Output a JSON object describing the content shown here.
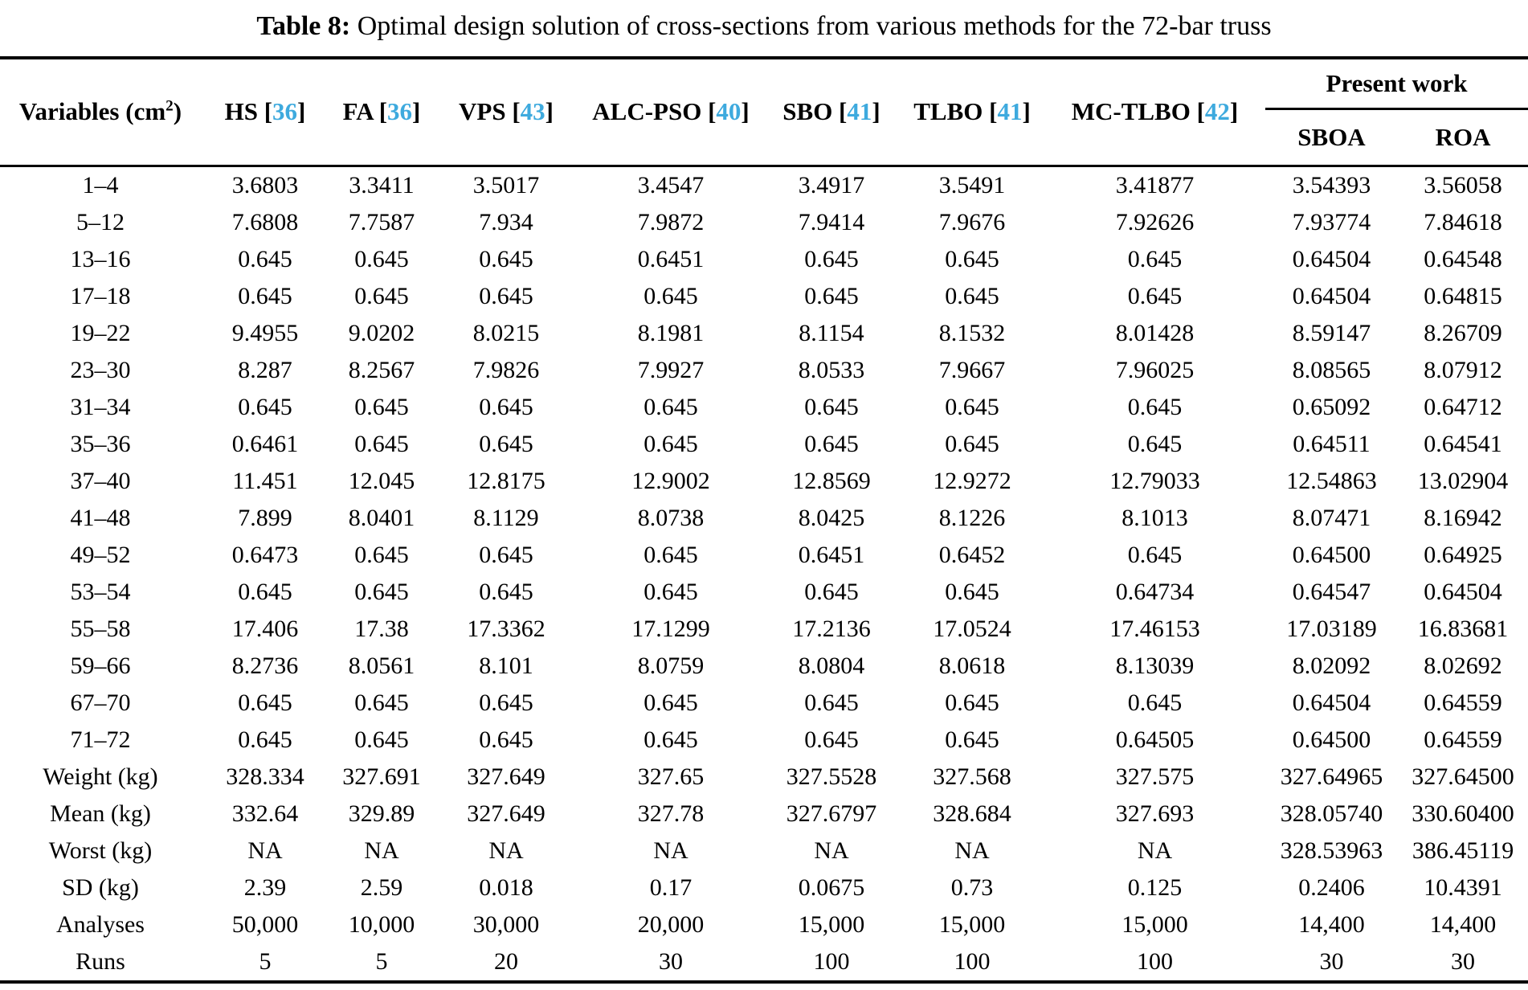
{
  "colors": {
    "citation": "#3eaade",
    "text": "#000000",
    "background": "#ffffff"
  },
  "caption": {
    "label": "Table 8:",
    "text": "Optimal design solution of cross-sections from various methods for the 72-bar truss"
  },
  "table": {
    "variables_header": {
      "text": "Variables (cm",
      "sup": "2",
      "close": ")"
    },
    "method_columns": [
      {
        "label": "HS",
        "cite": "36"
      },
      {
        "label": "FA",
        "cite": "36"
      },
      {
        "label": "VPS",
        "cite": "43"
      },
      {
        "label": "ALC-PSO",
        "cite": "40"
      },
      {
        "label": "SBO",
        "cite": "41"
      },
      {
        "label": "TLBO",
        "cite": "41"
      },
      {
        "label": "MC-TLBO",
        "cite": "42"
      }
    ],
    "present_work": {
      "label": "Present work",
      "sub_columns": [
        "SBOA",
        "ROA"
      ]
    },
    "rows": [
      {
        "label": "1–4",
        "values": [
          "3.6803",
          "3.3411",
          "3.5017",
          "3.4547",
          "3.4917",
          "3.5491",
          "3.41877",
          "3.54393",
          "3.56058"
        ]
      },
      {
        "label": "5–12",
        "values": [
          "7.6808",
          "7.7587",
          "7.934",
          "7.9872",
          "7.9414",
          "7.9676",
          "7.92626",
          "7.93774",
          "7.84618"
        ]
      },
      {
        "label": "13–16",
        "values": [
          "0.645",
          "0.645",
          "0.645",
          "0.6451",
          "0.645",
          "0.645",
          "0.645",
          "0.64504",
          "0.64548"
        ]
      },
      {
        "label": "17–18",
        "values": [
          "0.645",
          "0.645",
          "0.645",
          "0.645",
          "0.645",
          "0.645",
          "0.645",
          "0.64504",
          "0.64815"
        ]
      },
      {
        "label": "19–22",
        "values": [
          "9.4955",
          "9.0202",
          "8.0215",
          "8.1981",
          "8.1154",
          "8.1532",
          "8.01428",
          "8.59147",
          "8.26709"
        ]
      },
      {
        "label": "23–30",
        "values": [
          "8.287",
          "8.2567",
          "7.9826",
          "7.9927",
          "8.0533",
          "7.9667",
          "7.96025",
          "8.08565",
          "8.07912"
        ]
      },
      {
        "label": "31–34",
        "values": [
          "0.645",
          "0.645",
          "0.645",
          "0.645",
          "0.645",
          "0.645",
          "0.645",
          "0.65092",
          "0.64712"
        ]
      },
      {
        "label": "35–36",
        "values": [
          "0.6461",
          "0.645",
          "0.645",
          "0.645",
          "0.645",
          "0.645",
          "0.645",
          "0.64511",
          "0.64541"
        ]
      },
      {
        "label": "37–40",
        "values": [
          "11.451",
          "12.045",
          "12.8175",
          "12.9002",
          "12.8569",
          "12.9272",
          "12.79033",
          "12.54863",
          "13.02904"
        ]
      },
      {
        "label": "41–48",
        "values": [
          "7.899",
          "8.0401",
          "8.1129",
          "8.0738",
          "8.0425",
          "8.1226",
          "8.1013",
          "8.07471",
          "8.16942"
        ]
      },
      {
        "label": "49–52",
        "values": [
          "0.6473",
          "0.645",
          "0.645",
          "0.645",
          "0.6451",
          "0.6452",
          "0.645",
          "0.64500",
          "0.64925"
        ]
      },
      {
        "label": "53–54",
        "values": [
          "0.645",
          "0.645",
          "0.645",
          "0.645",
          "0.645",
          "0.645",
          "0.64734",
          "0.64547",
          "0.64504"
        ]
      },
      {
        "label": "55–58",
        "values": [
          "17.406",
          "17.38",
          "17.3362",
          "17.1299",
          "17.2136",
          "17.0524",
          "17.46153",
          "17.03189",
          "16.83681"
        ]
      },
      {
        "label": "59–66",
        "values": [
          "8.2736",
          "8.0561",
          "8.101",
          "8.0759",
          "8.0804",
          "8.0618",
          "8.13039",
          "8.02092",
          "8.02692"
        ]
      },
      {
        "label": "67–70",
        "values": [
          "0.645",
          "0.645",
          "0.645",
          "0.645",
          "0.645",
          "0.645",
          "0.645",
          "0.64504",
          "0.64559"
        ]
      },
      {
        "label": "71–72",
        "values": [
          "0.645",
          "0.645",
          "0.645",
          "0.645",
          "0.645",
          "0.645",
          "0.64505",
          "0.64500",
          "0.64559"
        ]
      },
      {
        "label": "Weight (kg)",
        "values": [
          "328.334",
          "327.691",
          "327.649",
          "327.65",
          "327.5528",
          "327.568",
          "327.575",
          "327.64965",
          "327.64500"
        ]
      },
      {
        "label": "Mean (kg)",
        "values": [
          "332.64",
          "329.89",
          "327.649",
          "327.78",
          "327.6797",
          "328.684",
          "327.693",
          "328.05740",
          "330.60400"
        ]
      },
      {
        "label": "Worst (kg)",
        "values": [
          "NA",
          "NA",
          "NA",
          "NA",
          "NA",
          "NA",
          "NA",
          "328.53963",
          "386.45119"
        ]
      },
      {
        "label": "SD (kg)",
        "values": [
          "2.39",
          "2.59",
          "0.018",
          "0.17",
          "0.0675",
          "0.73",
          "0.125",
          "0.2406",
          "10.4391"
        ]
      },
      {
        "label": "Analyses",
        "values": [
          "50,000",
          "10,000",
          "30,000",
          "20,000",
          "15,000",
          "15,000",
          "15,000",
          "14,400",
          "14,400"
        ]
      },
      {
        "label": "Runs",
        "values": [
          "5",
          "5",
          "20",
          "30",
          "100",
          "100",
          "100",
          "30",
          "30"
        ]
      }
    ]
  }
}
